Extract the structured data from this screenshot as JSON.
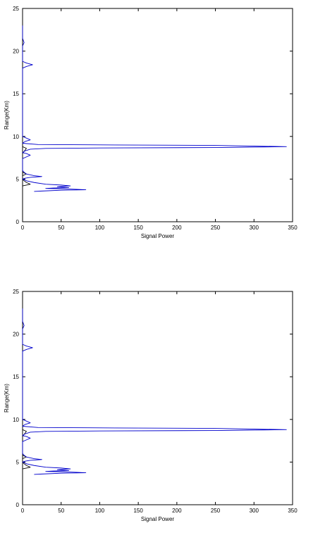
{
  "chart_data": [
    {
      "type": "line",
      "title": "",
      "xlabel": "Signal Power",
      "ylabel": "Range(Km)",
      "xlim": [
        0,
        350
      ],
      "ylim": [
        0,
        25
      ],
      "xticks": [
        0,
        50,
        100,
        150,
        200,
        250,
        300,
        350
      ],
      "yticks": [
        0,
        5,
        10,
        15,
        20,
        25
      ],
      "grid": false,
      "series": [
        {
          "color": "#000000",
          "points": [
            [
              0,
              0
            ],
            [
              0,
              2
            ],
            [
              0,
              3.0
            ],
            [
              0,
              3.5
            ],
            [
              0,
              4.0
            ],
            [
              0,
              4.2
            ],
            [
              5,
              4.3
            ],
            [
              10,
              4.4
            ],
            [
              5,
              4.6
            ],
            [
              2,
              4.8
            ],
            [
              0,
              5.0
            ],
            [
              0,
              5.4
            ],
            [
              5,
              5.6
            ],
            [
              0,
              5.8
            ],
            [
              0,
              7.0
            ],
            [
              0,
              7.6
            ],
            [
              0,
              8.0
            ],
            [
              5,
              8.6
            ],
            [
              0,
              8.8
            ],
            [
              0,
              9.0
            ],
            [
              0,
              9.4
            ],
            [
              0,
              10
            ],
            [
              0,
              12
            ],
            [
              0,
              15
            ],
            [
              0,
              18
            ],
            [
              0,
              20
            ],
            [
              0,
              22
            ],
            [
              0,
              23
            ]
          ]
        },
        {
          "color": "#0000cc",
          "points": [
            [
              0,
              23.0
            ],
            [
              0,
              21.5
            ],
            [
              2,
              21.0
            ],
            [
              0,
              20.6
            ],
            [
              0,
              19.0
            ],
            [
              0,
              18.8
            ],
            [
              5,
              18.6
            ],
            [
              13,
              18.4
            ],
            [
              5,
              18.2
            ],
            [
              0,
              18.0
            ],
            [
              0,
              11.0
            ],
            [
              0,
              10.0
            ],
            [
              5,
              9.8
            ],
            [
              10,
              9.6
            ],
            [
              3,
              9.4
            ],
            [
              0,
              9.2
            ],
            [
              20,
              9.05
            ],
            [
              120,
              9.0
            ],
            [
              250,
              8.95
            ],
            [
              342,
              8.8
            ],
            [
              250,
              8.7
            ],
            [
              100,
              8.65
            ],
            [
              30,
              8.6
            ],
            [
              10,
              8.5
            ],
            [
              3,
              8.3
            ],
            [
              0,
              8.1
            ],
            [
              5,
              8.0
            ],
            [
              10,
              7.8
            ],
            [
              5,
              7.6
            ],
            [
              0,
              7.4
            ],
            [
              0,
              6.0
            ],
            [
              2,
              5.8
            ],
            [
              5,
              5.6
            ],
            [
              15,
              5.4
            ],
            [
              25,
              5.3
            ],
            [
              10,
              5.2
            ],
            [
              3,
              5.1
            ],
            [
              0,
              5.0
            ],
            [
              5,
              4.8
            ],
            [
              15,
              4.6
            ],
            [
              30,
              4.4
            ],
            [
              50,
              4.3
            ],
            [
              62,
              4.2
            ],
            [
              45,
              4.1
            ],
            [
              60,
              4.0
            ],
            [
              40,
              3.95
            ],
            [
              30,
              3.9
            ],
            [
              55,
              3.85
            ],
            [
              70,
              3.8
            ],
            [
              82,
              3.75
            ],
            [
              50,
              3.7
            ],
            [
              25,
              3.6
            ],
            [
              15,
              3.55
            ]
          ]
        }
      ]
    },
    {
      "type": "line",
      "title": "",
      "xlabel": "Signal Power",
      "ylabel": "Range(Km)",
      "xlim": [
        0,
        350
      ],
      "ylim": [
        0,
        25
      ],
      "xticks": [
        0,
        50,
        100,
        150,
        200,
        250,
        300,
        350
      ],
      "yticks": [
        0,
        5,
        10,
        15,
        20,
        25
      ],
      "grid": false,
      "series": [
        {
          "color": "#000000",
          "points": [
            [
              0,
              0
            ],
            [
              0,
              2
            ],
            [
              0,
              3.0
            ],
            [
              0,
              3.5
            ],
            [
              0,
              4.0
            ],
            [
              0,
              4.2
            ],
            [
              5,
              4.3
            ],
            [
              10,
              4.4
            ],
            [
              5,
              4.6
            ],
            [
              2,
              4.8
            ],
            [
              0,
              5.0
            ],
            [
              0,
              5.4
            ],
            [
              5,
              5.6
            ],
            [
              0,
              5.8
            ],
            [
              0,
              7.0
            ],
            [
              0,
              7.6
            ],
            [
              0,
              8.0
            ],
            [
              5,
              8.6
            ],
            [
              0,
              8.8
            ],
            [
              0,
              9.0
            ],
            [
              0,
              9.4
            ],
            [
              0,
              10
            ],
            [
              0,
              12
            ],
            [
              0,
              15
            ],
            [
              0,
              18
            ],
            [
              0,
              20
            ],
            [
              0,
              22
            ],
            [
              0,
              23
            ]
          ]
        },
        {
          "color": "#0000cc",
          "points": [
            [
              0,
              23.0
            ],
            [
              0,
              21.5
            ],
            [
              2,
              21.0
            ],
            [
              0,
              20.6
            ],
            [
              0,
              19.0
            ],
            [
              0,
              18.8
            ],
            [
              5,
              18.6
            ],
            [
              13,
              18.4
            ],
            [
              5,
              18.2
            ],
            [
              0,
              18.0
            ],
            [
              0,
              11.0
            ],
            [
              0,
              10.0
            ],
            [
              5,
              9.8
            ],
            [
              10,
              9.6
            ],
            [
              3,
              9.4
            ],
            [
              0,
              9.2
            ],
            [
              20,
              9.05
            ],
            [
              120,
              9.0
            ],
            [
              250,
              8.95
            ],
            [
              342,
              8.8
            ],
            [
              250,
              8.7
            ],
            [
              100,
              8.65
            ],
            [
              30,
              8.6
            ],
            [
              10,
              8.5
            ],
            [
              3,
              8.3
            ],
            [
              0,
              8.1
            ],
            [
              5,
              8.0
            ],
            [
              10,
              7.8
            ],
            [
              5,
              7.6
            ],
            [
              0,
              7.4
            ],
            [
              0,
              6.0
            ],
            [
              2,
              5.8
            ],
            [
              5,
              5.6
            ],
            [
              15,
              5.4
            ],
            [
              25,
              5.3
            ],
            [
              10,
              5.2
            ],
            [
              3,
              5.1
            ],
            [
              0,
              5.0
            ],
            [
              5,
              4.8
            ],
            [
              15,
              4.6
            ],
            [
              30,
              4.4
            ],
            [
              50,
              4.3
            ],
            [
              62,
              4.2
            ],
            [
              45,
              4.1
            ],
            [
              60,
              4.0
            ],
            [
              40,
              3.95
            ],
            [
              30,
              3.9
            ],
            [
              55,
              3.85
            ],
            [
              70,
              3.8
            ],
            [
              82,
              3.75
            ],
            [
              50,
              3.7
            ],
            [
              25,
              3.6
            ],
            [
              15,
              3.55
            ]
          ]
        }
      ]
    }
  ]
}
